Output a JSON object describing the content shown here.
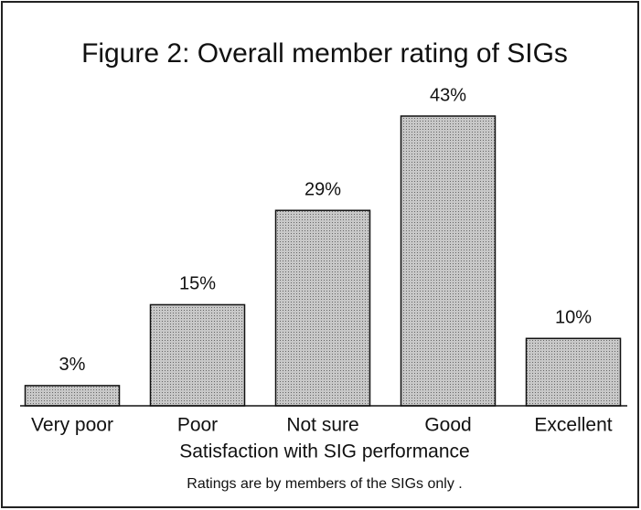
{
  "chart_data": {
    "type": "bar",
    "title": "Figure 2: Overall member rating of SIGs",
    "categories": [
      "Very poor",
      "Poor",
      "Not sure",
      "Good",
      "Excellent"
    ],
    "values": [
      3,
      15,
      29,
      43,
      10
    ],
    "value_labels": [
      "3%",
      "15%",
      "29%",
      "43%",
      "10%"
    ],
    "color": "#b9b9b9",
    "x_axis_label": "Satisfaction with SIG performance",
    "note": "Ratings are by members of the SIGs only ."
  }
}
